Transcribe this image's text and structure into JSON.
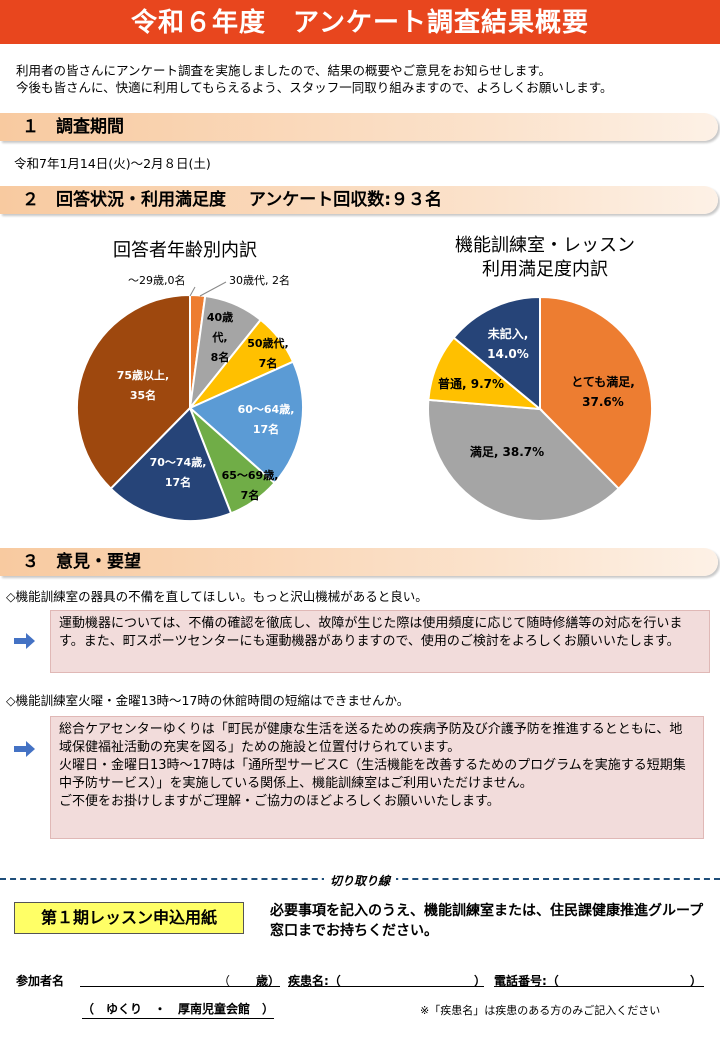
{
  "title": "令和６年度　アンケート調査結果概要",
  "intro": {
    "line1": "利用者の皆さんにアンケート調査を実施しましたので、結果の概要やご意見をお知らせします。",
    "line2": "今後も皆さんに、快適に利用してもらえるよう、スタッフ一同取り組みますので、よろしくお願いします。"
  },
  "section1": {
    "heading": "１　調査期間",
    "text": "令和7年1月14日(火)～2月８日(土)"
  },
  "section2": {
    "heading": "２　回答状況・利用満足度　 アンケート回収数:９３名"
  },
  "section3": {
    "heading": "３　意見・要望"
  },
  "chart_data": [
    {
      "type": "pie",
      "title": "回答者年齢別内訳",
      "slices": [
        {
          "label": "～29歳",
          "value": 0,
          "text": "～29歳,0名",
          "color": "#ed7d31"
        },
        {
          "label": "30歳代",
          "value": 2,
          "text": "30歳代, 2名",
          "color": "#ed7d31"
        },
        {
          "label": "40歳代",
          "value": 8,
          "text_a": "40歳代,",
          "text_b": "8名",
          "color": "#a5a5a5"
        },
        {
          "label": "50歳代",
          "value": 7,
          "text_a": "50歳代,",
          "text_b": "7名",
          "color": "#ffc000"
        },
        {
          "label": "60～64歳",
          "value": 17,
          "text_a": "60～64歳,",
          "text_b": "17名",
          "color": "#5b9bd5"
        },
        {
          "label": "65～69歳",
          "value": 7,
          "text_a": "65～69歳,",
          "text_b": "7名",
          "color": "#70ad47"
        },
        {
          "label": "70～74歳",
          "value": 17,
          "text_a": "70～74歳,",
          "text_b": "17名",
          "color": "#264478"
        },
        {
          "label": "75歳以上",
          "value": 35,
          "text_a": "75歳以上,",
          "text_b": "35名",
          "color": "#9e480e"
        }
      ]
    },
    {
      "type": "pie",
      "title_line1": "機能訓練室・レッスン",
      "title_line2": "利用満足度内訳",
      "slices": [
        {
          "label": "とても満足",
          "value": 37.6,
          "text_a": "とても満足,",
          "text_b": "37.6%",
          "color": "#ed7d31"
        },
        {
          "label": "満足",
          "value": 38.7,
          "text_a": "満足, 38.7%",
          "color": "#a5a5a5"
        },
        {
          "label": "普通",
          "value": 9.7,
          "text_a": "普通, 9.7%",
          "color": "#ffc000"
        },
        {
          "label": "未記入",
          "value": 14.0,
          "text_a": "未記入,",
          "text_b": "14.0%",
          "color": "#264478"
        }
      ]
    }
  ],
  "opinions": [
    {
      "question": "◇機能訓練室の器具の不備を直してほしい。もっと沢山機械があると良い。",
      "answer": "運動機器については、不備の確認を徹底し、故障が生じた際は使用頻度に応じて随時修繕等の対応を行います。また、町スポーツセンターにも運動機器がありますので、使用のご検討をよろしくお願いいたします。"
    },
    {
      "question": "◇機能訓練室火曜・金曜13時～17時の休館時間の短縮はできませんか。",
      "answer_p1": "総合ケアセンターゆくりは「町民が健康な生活を送るための疾病予防及び介護予防を推進するとともに、地域保健福祉活動の充実を図る」ための施設と位置付けられています。",
      "answer_p2": "火曜日・金曜日13時～17時は「通所型サービスC（生活機能を改善するためのプログラムを実施する短期集中予防サービス）」を実施している関係上、機能訓練室はご利用いただけません。",
      "answer_p3": "ご不便をお掛けしますがご理解・ご協力のほどよろしくお願いいたします。"
    }
  ],
  "cut_line_label": "切り取り線",
  "application": {
    "title": "第１期レッスン申込用紙",
    "note": "必要事項を記入のうえ、機能訓練室または、住民課健康推進グループ窓口までお持ちください。",
    "name_label": "参加者名",
    "age_open": "（",
    "age_label": "歳）",
    "disease_label": "疾患名:（",
    "disease_close": "）",
    "phone_label": "電話番号:（",
    "phone_close": "）",
    "venue": "（　ゆくり　・　厚南児童会館　）",
    "footnote": "※「疾患名」は疾患のある方のみご記入ください"
  }
}
